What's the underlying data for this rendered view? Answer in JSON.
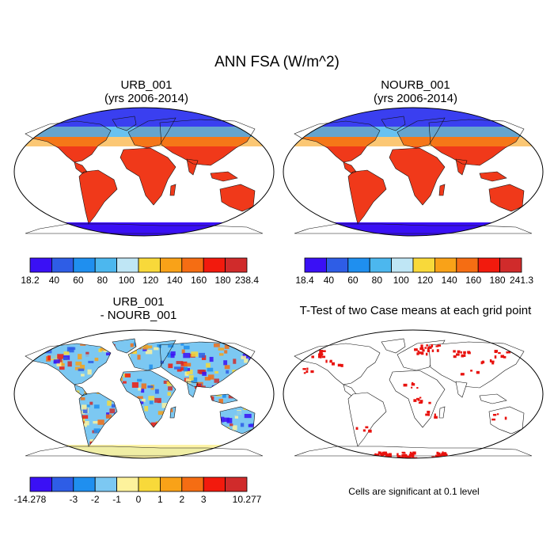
{
  "figure": {
    "title": "ANN FSA (W/m^2)",
    "note": "Cells are significant at 0.1 level"
  },
  "chart_data": [
    {
      "type": "map",
      "title_line1": "URB_001",
      "title_line2": "(yrs 2006-2014)",
      "colorbar": {
        "colors": [
          "#3a10f5",
          "#2e5de6",
          "#1f8fef",
          "#4cb7ee",
          "#bfe6f5",
          "#f8d93a",
          "#f9a218",
          "#f56d13",
          "#f21a0d",
          "#d02b2b"
        ],
        "labels": [
          "18.2",
          "40",
          "60",
          "80",
          "100",
          "120",
          "140",
          "160",
          "180",
          "238.4"
        ],
        "min": 18.2,
        "max": 238.4
      }
    },
    {
      "type": "map",
      "title_line1": "NOURB_001",
      "title_line2": "(yrs 2006-2014)",
      "colorbar": {
        "colors": [
          "#3a10f5",
          "#2e5de6",
          "#1f8fef",
          "#4cb7ee",
          "#bfe6f5",
          "#f8d93a",
          "#f9a218",
          "#f56d13",
          "#f21a0d",
          "#d02b2b"
        ],
        "labels": [
          "18.4",
          "40",
          "60",
          "80",
          "100",
          "120",
          "140",
          "160",
          "180",
          "241.3"
        ],
        "min": 18.4,
        "max": 241.3
      }
    },
    {
      "type": "map",
      "title_line1": "URB_001",
      "title_line2": "- NOURB_001",
      "colorbar": {
        "colors": [
          "#3a10f5",
          "#2e5de6",
          "#1f8fef",
          "#7cc8f2",
          "#fdf29c",
          "#f8d93a",
          "#f9a218",
          "#f56d13",
          "#f21a0d",
          "#d02b2b"
        ],
        "labels": [
          "-14.278",
          "",
          "-3",
          "-2",
          "-1",
          "0",
          "1",
          "2",
          "3",
          "",
          "10.277"
        ],
        "min": -14.278,
        "max": 10.277
      }
    },
    {
      "type": "map",
      "title_line1": "T-Test of two Case means at each grid point",
      "title_line2": "",
      "significance_color": "#e8120e"
    }
  ]
}
